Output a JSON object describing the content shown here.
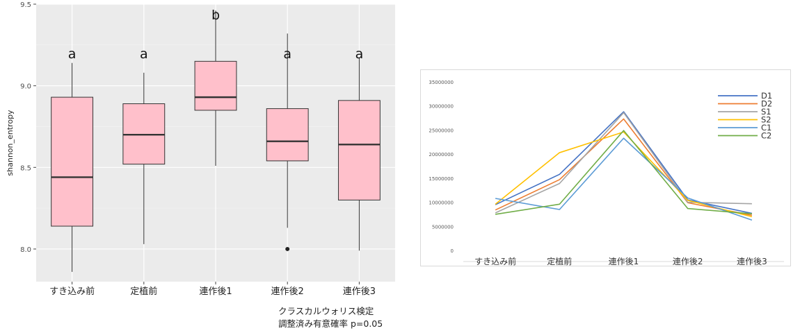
{
  "chart_data": [
    {
      "type": "box",
      "ylabel": "shannon_entropy",
      "ylim": [
        7.8,
        9.5
      ],
      "yticks": [
        "8.0",
        "8.5",
        "9.0",
        "9.5"
      ],
      "ytick_values": [
        8.0,
        8.5,
        9.0,
        9.5
      ],
      "categories": [
        "すき込み前",
        "定植前",
        "連作後1",
        "連作後2",
        "連作後3"
      ],
      "boxes": [
        {
          "whisker_low": 7.86,
          "q1": 8.14,
          "median": 8.44,
          "q3": 8.93,
          "whisker_high": 9.14,
          "outliers": []
        },
        {
          "whisker_low": 8.03,
          "q1": 8.52,
          "median": 8.7,
          "q3": 8.89,
          "whisker_high": 9.08,
          "outliers": []
        },
        {
          "whisker_low": 8.51,
          "q1": 8.85,
          "median": 8.93,
          "q3": 9.15,
          "whisker_high": 9.46,
          "outliers": []
        },
        {
          "whisker_low": 8.13,
          "q1": 8.54,
          "median": 8.66,
          "q3": 8.86,
          "whisker_high": 9.32,
          "outliers": [
            8.0
          ]
        },
        {
          "whisker_low": 7.99,
          "q1": 8.3,
          "median": 8.64,
          "q3": 8.91,
          "whisker_high": 9.17,
          "outliers": []
        }
      ],
      "significance_letters": [
        "a",
        "a",
        "b",
        "a",
        "a"
      ],
      "box_fill": "#ffc0cb",
      "panel_background": "#ebebeb",
      "grid": true,
      "footnote_line1": "クラスカルウォリス検定",
      "footnote_line2": "調整済み有意確率 p=0.05"
    },
    {
      "type": "line",
      "categories": [
        "すき込み前",
        "定植前",
        "連作後1",
        "連作後2",
        "連作後3"
      ],
      "ylim": [
        0,
        35000000
      ],
      "yticks": [
        "0",
        "5000000",
        "10000000",
        "15000000",
        "20000000",
        "25000000",
        "30000000",
        "35000000"
      ],
      "ytick_values": [
        0,
        5000000,
        10000000,
        15000000,
        20000000,
        25000000,
        30000000,
        35000000
      ],
      "series": [
        {
          "name": "D1",
          "color": "#4472c4",
          "values": [
            9500000,
            15800000,
            28800000,
            10500000,
            7700000
          ]
        },
        {
          "name": "D2",
          "color": "#ed7d31",
          "values": [
            8400000,
            14700000,
            27300000,
            9900000,
            7300000
          ]
        },
        {
          "name": "S1",
          "color": "#a5a5a5",
          "values": [
            7800000,
            13900000,
            28600000,
            10000000,
            9700000
          ]
        },
        {
          "name": "S2",
          "color": "#ffc000",
          "values": [
            9600000,
            20300000,
            24600000,
            10400000,
            7000000
          ]
        },
        {
          "name": "C1",
          "color": "#5b9bd5",
          "values": [
            10800000,
            8500000,
            23300000,
            10900000,
            6300000
          ]
        },
        {
          "name": "C2",
          "color": "#70ad47",
          "values": [
            7500000,
            9600000,
            24900000,
            8700000,
            7600000
          ]
        }
      ],
      "legend_position": "top-right",
      "grid": false
    }
  ]
}
